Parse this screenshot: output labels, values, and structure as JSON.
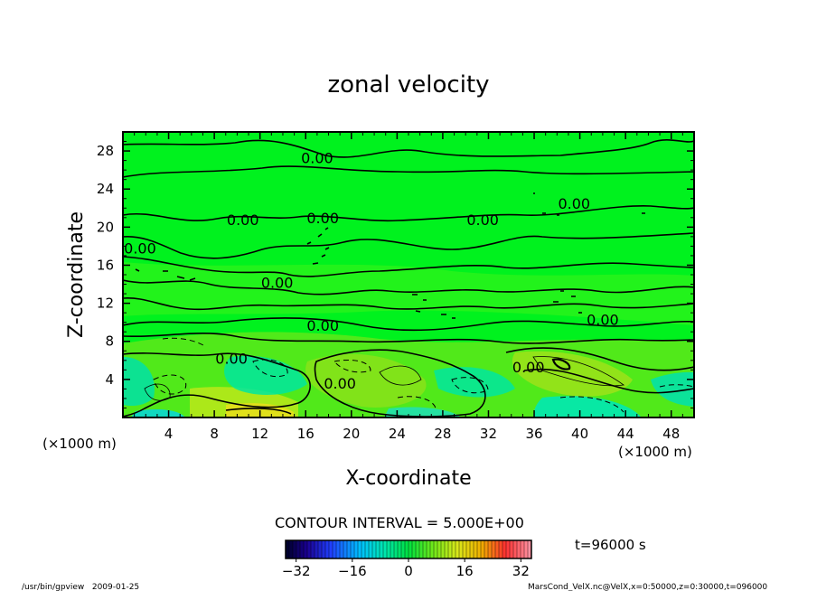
{
  "chart_data": {
    "type": "heatmap",
    "title": "zonal velocity",
    "xlabel": "X-coordinate",
    "ylabel": "Z-coordinate",
    "x_unit": "(×1000 m)",
    "y_unit": "(×1000 m)",
    "xlim": [
      0,
      50
    ],
    "ylim": [
      0,
      30
    ],
    "x_ticks": [
      4,
      8,
      12,
      16,
      20,
      24,
      28,
      32,
      36,
      40,
      44,
      48
    ],
    "y_ticks": [
      4,
      8,
      12,
      16,
      20,
      24,
      28
    ],
    "contour_labels": [
      {
        "text": "0.00",
        "x": 17.0,
        "y": 27.3
      },
      {
        "text": "0.00",
        "x": 39.5,
        "y": 22.5
      },
      {
        "text": "0.00",
        "x": 31.5,
        "y": 20.8
      },
      {
        "text": "0.00",
        "x": 10.5,
        "y": 20.8
      },
      {
        "text": "0.00",
        "x": 17.5,
        "y": 21.0
      },
      {
        "text": "0.00",
        "x": 1.5,
        "y": 17.8
      },
      {
        "text": "0.00",
        "x": 13.5,
        "y": 14.2
      },
      {
        "text": "0.00",
        "x": 17.5,
        "y": 9.7
      },
      {
        "text": "0.00",
        "x": 42.0,
        "y": 10.3
      },
      {
        "text": "0.00",
        "x": 9.5,
        "y": 6.2
      },
      {
        "text": "0.00",
        "x": 19.0,
        "y": 3.6
      },
      {
        "text": "0.00",
        "x": 35.5,
        "y": 5.3
      }
    ],
    "contour_interval_label": "CONTOUR INTERVAL = 5.000E+00",
    "colorbar": {
      "min": -35,
      "max": 35,
      "ticks": [
        -32,
        -16,
        0,
        16,
        32
      ],
      "tick_labels": [
        "−32",
        "−16",
        "0",
        "16",
        "32"
      ]
    }
  },
  "time_label": "t=96000 s",
  "footer": {
    "left": "/usr/bin/gpview   2009-01-25",
    "right": "MarsCond_VelX.nc@VelX,x=0:50000,z=0:30000,t=096000"
  }
}
